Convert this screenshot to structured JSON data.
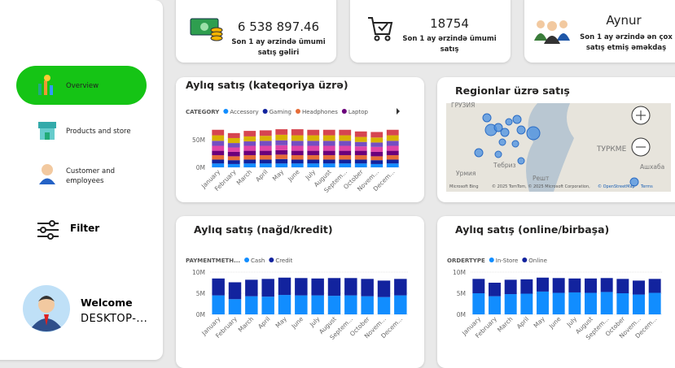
{
  "sidebar": {
    "nav": [
      "Overview",
      "Products and store",
      "Customer and employees"
    ],
    "filter": "Filter",
    "welcome": "Welcome",
    "user": "DESKTOP-..."
  },
  "kpis": [
    {
      "value": "6 538 897.46",
      "label": "Son 1 ay ərzində ümumi satış gəliri"
    },
    {
      "value": "18754",
      "label": "Son 1 ay ərzində ümumi satış"
    },
    {
      "value": "Aynur",
      "label": "Son 1 ay ərzində ən çox satış etmiş əməkdaş"
    }
  ],
  "map": {
    "title": "Regionlar üzrə satış",
    "labels": [
      "ГРУЗИЯ",
      "Тебриз",
      "Урмия",
      "Решт",
      "ТУРКМЕ",
      "Ашхаба"
    ],
    "logo": "Microsoft Bing",
    "attribution": "© 2025 TomTom, © 2025 Microsoft Corporation,",
    "osm": "© OpenStreetMap",
    "terms": "Terms"
  },
  "chart_data": [
    {
      "type": "bar",
      "stacked": true,
      "title": "Aylıq satış (kateqoriya üzrə)",
      "legend_title": "CATEGORY",
      "categories": [
        "January",
        "February",
        "March",
        "April",
        "May",
        "June",
        "July",
        "August",
        "Septem...",
        "October",
        "Novem...",
        "Decem..."
      ],
      "series": [
        {
          "name": "Accessory",
          "color": "#118DFF",
          "values": [
            7,
            6,
            7,
            7,
            7,
            7,
            7,
            7,
            7,
            7,
            6,
            7
          ]
        },
        {
          "name": "Gaming",
          "color": "#12239E",
          "values": [
            7,
            7,
            7,
            7,
            8,
            7,
            7,
            7,
            7,
            7,
            7,
            7
          ]
        },
        {
          "name": "Headphones",
          "color": "#E66C37",
          "values": [
            8,
            7,
            8,
            8,
            8,
            8,
            8,
            8,
            8,
            8,
            7,
            8
          ]
        },
        {
          "name": "Laptop",
          "color": "#6B007B",
          "values": [
            8,
            8,
            8,
            8,
            8,
            8,
            8,
            8,
            8,
            8,
            8,
            8
          ]
        },
        {
          "color": "#E044A7",
          "values": [
            9,
            8,
            9,
            9,
            9,
            9,
            9,
            9,
            9,
            8,
            9,
            9
          ]
        },
        {
          "color": "#744EC2",
          "values": [
            9,
            8,
            8,
            9,
            9,
            9,
            9,
            9,
            9,
            8,
            8,
            9
          ]
        },
        {
          "color": "#D9B300",
          "values": [
            10,
            9,
            9,
            9,
            10,
            10,
            10,
            10,
            10,
            9,
            9,
            10
          ]
        },
        {
          "color": "#D64550",
          "values": [
            10,
            9,
            10,
            10,
            10,
            11,
            10,
            10,
            10,
            10,
            10,
            10
          ]
        }
      ],
      "ylim": [
        0,
        75
      ],
      "yticks": [
        {
          "value": 0,
          "label": "0M"
        },
        {
          "value": 50,
          "label": "50M"
        }
      ]
    },
    {
      "type": "bar",
      "stacked": true,
      "title": "Aylıq satış (nağd/kredit)",
      "legend_title": "PAYMENTMETH...",
      "categories": [
        "January",
        "February",
        "March",
        "April",
        "May",
        "June",
        "July",
        "August",
        "Septem...",
        "October",
        "Novem...",
        "Decem..."
      ],
      "series": [
        {
          "name": "Cash",
          "color": "#118DFF",
          "values": [
            4.5,
            3.6,
            4.3,
            4.2,
            4.6,
            4.5,
            4.5,
            4.4,
            4.5,
            4.3,
            4.1,
            4.5
          ]
        },
        {
          "name": "Credit",
          "color": "#12239E",
          "values": [
            4.0,
            4.0,
            3.9,
            4.2,
            4.1,
            4.1,
            4.0,
            4.2,
            4.1,
            4.1,
            3.9,
            3.9
          ]
        }
      ],
      "ylim": [
        0,
        10
      ],
      "yticks": [
        {
          "value": 0,
          "label": "0M"
        },
        {
          "value": 5,
          "label": "5M"
        },
        {
          "value": 10,
          "label": "10M"
        }
      ]
    },
    {
      "type": "bar",
      "stacked": true,
      "title": "Aylıq satış (online/birbaşa)",
      "legend_title": "ORDERTYPE",
      "categories": [
        "January",
        "February",
        "March",
        "April",
        "May",
        "June",
        "July",
        "August",
        "Septem...",
        "October",
        "Novem...",
        "Decem..."
      ],
      "series": [
        {
          "name": "In-Store",
          "color": "#118DFF",
          "values": [
            5.0,
            4.3,
            4.8,
            4.9,
            5.4,
            5.1,
            5.2,
            5.1,
            5.3,
            5.0,
            4.7,
            5.1
          ]
        },
        {
          "name": "Online",
          "color": "#12239E",
          "values": [
            3.4,
            3.2,
            3.4,
            3.4,
            3.3,
            3.5,
            3.3,
            3.4,
            3.3,
            3.4,
            3.3,
            3.3
          ]
        }
      ],
      "ylim": [
        0,
        10
      ],
      "yticks": [
        {
          "value": 0,
          "label": "0M"
        },
        {
          "value": 5,
          "label": "5M"
        },
        {
          "value": 10,
          "label": "10M"
        }
      ]
    }
  ]
}
